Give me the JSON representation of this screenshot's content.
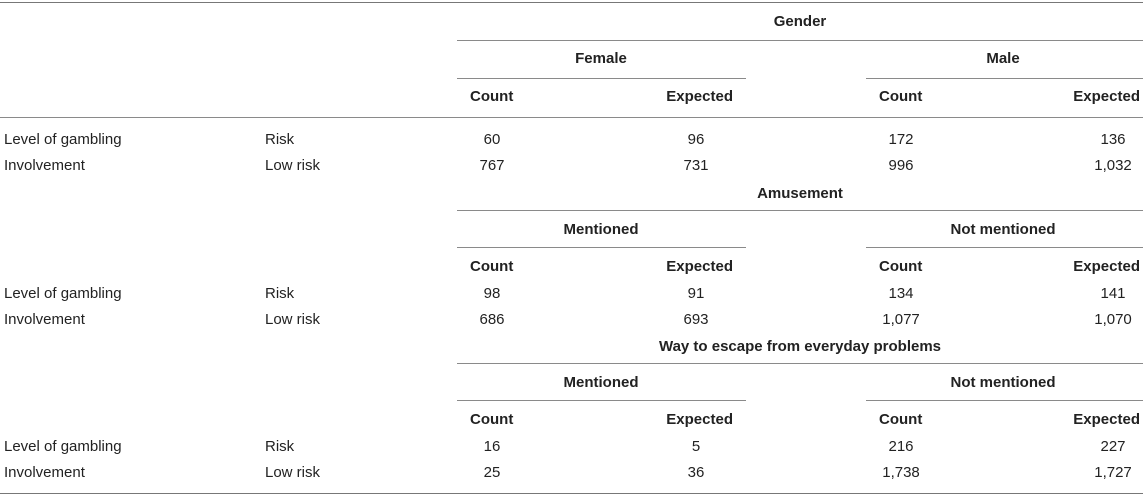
{
  "sections": [
    {
      "title": "Gender",
      "groups": [
        "Female",
        "Male"
      ],
      "columns": [
        "Count",
        "Expected",
        "Count",
        "Expected"
      ],
      "rows": [
        {
          "label": "Level of gambling",
          "sub": "Risk",
          "values": [
            "60",
            "96",
            "172",
            "136"
          ]
        },
        {
          "label": "Involvement",
          "sub": "Low risk",
          "values": [
            "767",
            "731",
            "996",
            "1,032"
          ]
        }
      ]
    },
    {
      "title": "Amusement",
      "groups": [
        "Mentioned",
        "Not mentioned"
      ],
      "columns": [
        "Count",
        "Expected",
        "Count",
        "Expected"
      ],
      "rows": [
        {
          "label": "Level of gambling",
          "sub": "Risk",
          "values": [
            "98",
            "91",
            "134",
            "141"
          ]
        },
        {
          "label": "Involvement",
          "sub": "Low risk",
          "values": [
            "686",
            "693",
            "1,077",
            "1,070"
          ]
        }
      ]
    },
    {
      "title": "Way to escape from everyday problems",
      "groups": [
        "Mentioned",
        "Not mentioned"
      ],
      "columns": [
        "Count",
        "Expected",
        "Count",
        "Expected"
      ],
      "rows": [
        {
          "label": "Level of gambling",
          "sub": "Risk",
          "values": [
            "16",
            "5",
            "216",
            "227"
          ]
        },
        {
          "label": "Involvement",
          "sub": "Low risk",
          "values": [
            "25",
            "36",
            "1,738",
            "1,727"
          ]
        }
      ]
    }
  ]
}
